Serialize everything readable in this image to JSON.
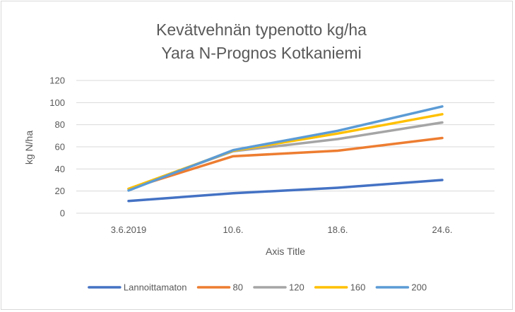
{
  "chart_data": {
    "type": "line",
    "title_lines": [
      "Kevätvehnän   typenotto kg/ha",
      "Yara N-Prognos Kotkaniemi"
    ],
    "xlabel": "Axis Title",
    "ylabel": "kg N/ha",
    "categories": [
      "3.6.2019",
      "10.6.",
      "18.6.",
      "24.6."
    ],
    "ylim": [
      0,
      120
    ],
    "yticks": [
      0,
      20,
      40,
      60,
      80,
      100,
      120
    ],
    "grid": true,
    "legend_position": "bottom",
    "series": [
      {
        "name": "Lannoittamaton",
        "color": "#4472C4",
        "values": [
          11,
          18,
          23,
          30
        ]
      },
      {
        "name": "80",
        "color": "#ED7D31",
        "values": [
          22,
          51.5,
          56.5,
          68
        ]
      },
      {
        "name": "120",
        "color": "#A5A5A5",
        "values": [
          22,
          56,
          67,
          82
        ]
      },
      {
        "name": "160",
        "color": "#FFC000",
        "values": [
          22,
          56.5,
          72,
          89.5
        ]
      },
      {
        "name": "200",
        "color": "#5B9BD5",
        "values": [
          20.5,
          57,
          74.5,
          96.5
        ]
      }
    ]
  }
}
